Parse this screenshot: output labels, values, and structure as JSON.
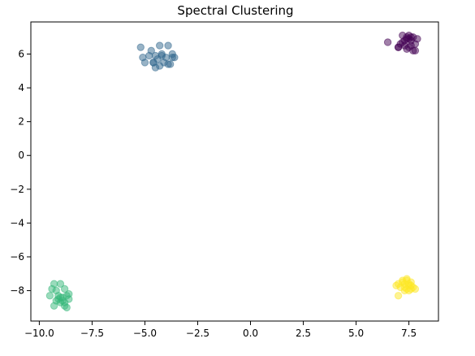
{
  "chart_data": {
    "type": "scatter",
    "title": "Spectral Clustering",
    "xlabel": "",
    "ylabel": "",
    "xlim": [
      -10.4,
      8.9
    ],
    "ylim": [
      -9.8,
      7.9
    ],
    "xticks": [
      -10.0,
      -7.5,
      -5.0,
      -2.5,
      0.0,
      2.5,
      5.0,
      7.5
    ],
    "xtick_labels": [
      "−10.0",
      "−7.5",
      "−5.0",
      "−2.5",
      "0.0",
      "2.5",
      "5.0",
      "7.5"
    ],
    "yticks": [
      -8,
      -6,
      -4,
      -2,
      0,
      2,
      4,
      6
    ],
    "ytick_labels": [
      "−8",
      "−6",
      "−4",
      "−2",
      "0",
      "2",
      "4",
      "6"
    ],
    "grid": false,
    "marker_alpha": 0.5,
    "series": [
      {
        "color": "#440154",
        "x": [
          6.5,
          7.2,
          7.4,
          7.5,
          7.7,
          7.3,
          7.0,
          7.8,
          7.6,
          7.9,
          7.1,
          7.5,
          7.3,
          7.7,
          7.4,
          7.6,
          7.2,
          7.5,
          7.8,
          7.4,
          7.0,
          7.6
        ],
        "y": [
          6.7,
          7.1,
          7.0,
          7.1,
          7.0,
          6.8,
          6.4,
          6.6,
          6.5,
          6.9,
          6.6,
          6.9,
          6.5,
          6.2,
          6.3,
          6.8,
          6.7,
          6.4,
          6.2,
          6.9,
          6.4,
          7.0
        ]
      },
      {
        "color": "#31688e",
        "x": [
          -5.2,
          -4.7,
          -4.3,
          -3.9,
          -3.7,
          -4.5,
          -4.2,
          -4.0,
          -3.6,
          -5.1,
          -4.8,
          -4.4,
          -4.6,
          -4.1,
          -3.8,
          -5.0,
          -4.3,
          -4.5,
          -3.9,
          -4.2,
          -3.7,
          -4.6
        ],
        "y": [
          6.4,
          6.2,
          6.5,
          6.5,
          6.0,
          5.9,
          6.0,
          5.8,
          5.8,
          5.8,
          5.9,
          5.7,
          5.5,
          5.5,
          5.4,
          5.5,
          5.3,
          5.2,
          5.4,
          5.9,
          5.8,
          5.5
        ]
      },
      {
        "color": "#35b779",
        "x": [
          -9.3,
          -9.0,
          -8.8,
          -9.5,
          -9.2,
          -8.7,
          -9.0,
          -8.6,
          -9.1,
          -8.9,
          -9.3,
          -9.0,
          -8.8,
          -8.7,
          -9.2,
          -8.9,
          -8.6,
          -9.4,
          -9.1,
          -8.8
        ],
        "y": [
          -7.6,
          -7.6,
          -7.9,
          -8.3,
          -8.0,
          -8.3,
          -8.4,
          -8.5,
          -8.5,
          -8.6,
          -8.9,
          -8.7,
          -8.9,
          -9.0,
          -8.6,
          -8.4,
          -8.2,
          -7.9,
          -8.3,
          -8.7
        ]
      },
      {
        "color": "#fde725",
        "x": [
          7.2,
          7.4,
          7.6,
          7.0,
          7.3,
          7.5,
          7.7,
          7.1,
          7.4,
          7.6,
          7.3,
          6.9,
          7.5,
          7.2,
          7.8,
          7.0,
          7.4,
          7.6,
          7.3,
          7.5
        ],
        "y": [
          -7.4,
          -7.3,
          -7.5,
          -7.6,
          -7.6,
          -7.7,
          -7.8,
          -7.8,
          -7.9,
          -7.9,
          -8.0,
          -7.7,
          -7.6,
          -7.5,
          -7.9,
          -8.3,
          -7.4,
          -7.7,
          -7.8,
          -8.0
        ]
      }
    ]
  }
}
